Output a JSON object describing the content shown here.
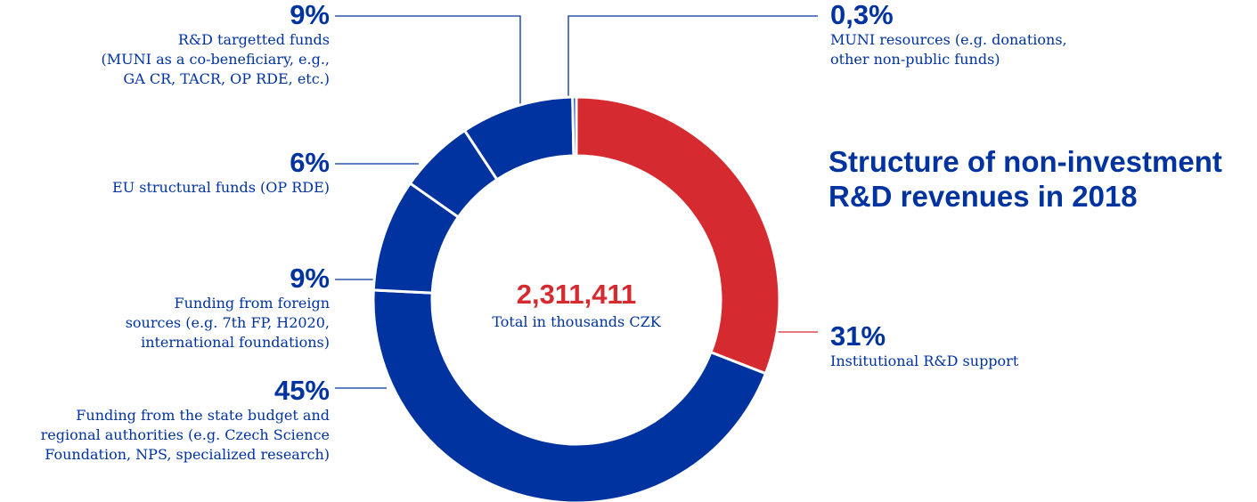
{
  "chart_data": {
    "type": "pie",
    "title": "Structure of non-investment R&D revenues in 2018",
    "center": {
      "value": "2,311,411",
      "label": "Total in thousands CZK"
    },
    "slices": [
      {
        "value": 31,
        "pct_label": "31%",
        "description": [
          "Institutional R&D support"
        ],
        "color": "#d52b30"
      },
      {
        "value": 45,
        "pct_label": "45%",
        "description": [
          "Funding from the state budget and",
          "regional authorities (e.g. Czech Science",
          "Foundation, NPS, specialized research)"
        ],
        "color": "#0033a0"
      },
      {
        "value": 9,
        "pct_label": "9%",
        "description": [
          "Funding from foreign",
          "sources (e.g. 7th  FP, H2020,",
          "international foundations)"
        ],
        "color": "#0033a0"
      },
      {
        "value": 6,
        "pct_label": "6%",
        "description": [
          "EU structural funds (OP RDE)"
        ],
        "color": "#0033a0"
      },
      {
        "value": 9,
        "pct_label": "9%",
        "description": [
          "R&D targetted funds",
          "(MUNI as a co-beneficiary, e.g.,",
          "GA CR, TACR, OP RDE, etc.)"
        ],
        "color": "#0033a0"
      },
      {
        "value": 0.3,
        "pct_label": "0,3%",
        "description": [
          "MUNI resources (e.g. donations,",
          "other non-public funds)"
        ],
        "color": "#0033a0"
      }
    ],
    "colors": {
      "primary": "#0033a0",
      "accent": "#d52b30"
    }
  }
}
